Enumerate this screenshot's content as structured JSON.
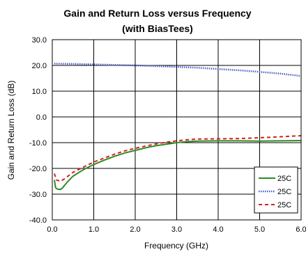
{
  "chart_data": {
    "type": "line",
    "title": "Gain and Return Loss versus Frequency",
    "subtitle": "(with BiasTees)",
    "xlabel": "Frequency (GHz)",
    "ylabel": "Gain and Return Loss (dB)",
    "xlim": [
      0,
      6
    ],
    "ylim": [
      -40,
      30
    ],
    "x_ticks": [
      "0.0",
      "1.0",
      "2.0",
      "3.0",
      "4.0",
      "5.0",
      "6.0"
    ],
    "y_ticks": [
      "30.0",
      "20.0",
      "10.0",
      "0.0",
      "-10.0",
      "-20.0",
      "-30.0",
      "-40.0"
    ],
    "grid": true,
    "legend_position": "bottom-right",
    "series": [
      {
        "name": "25C",
        "color": "#2e8b23",
        "style": "solid",
        "x": [
          0.05,
          0.08,
          0.12,
          0.2,
          0.25,
          0.35,
          0.5,
          0.75,
          1.0,
          1.25,
          1.5,
          1.75,
          2.0,
          2.25,
          2.5,
          2.75,
          3.0,
          3.25,
          3.5,
          4.0,
          4.5,
          5.0,
          5.5,
          6.0
        ],
        "y": [
          -24.5,
          -27.5,
          -28.0,
          -28.2,
          -27.5,
          -25.5,
          -23.0,
          -20.5,
          -18.5,
          -16.8,
          -15.3,
          -14.0,
          -13.0,
          -12.0,
          -11.2,
          -10.6,
          -10.0,
          -9.6,
          -9.4,
          -9.3,
          -9.3,
          -9.4,
          -9.3,
          -9.2
        ]
      },
      {
        "name": "25C",
        "color": "#4a5fc8",
        "style": "dotted",
        "x": [
          0.05,
          0.5,
          1.0,
          1.5,
          2.0,
          2.5,
          3.0,
          3.5,
          4.0,
          4.5,
          5.0,
          5.5,
          6.0
        ],
        "y": [
          20.7,
          20.6,
          20.4,
          20.2,
          20.0,
          19.7,
          19.4,
          19.1,
          18.6,
          18.1,
          17.5,
          16.8,
          15.9
        ]
      },
      {
        "name": "25C",
        "color": "#d42020",
        "style": "dashed",
        "x": [
          0.05,
          0.1,
          0.2,
          0.3,
          0.5,
          0.75,
          1.0,
          1.25,
          1.5,
          1.75,
          2.0,
          2.25,
          2.5,
          2.75,
          3.0,
          3.25,
          3.5,
          4.0,
          4.5,
          5.0,
          5.5,
          6.0
        ],
        "y": [
          -22.0,
          -24.5,
          -25.0,
          -24.0,
          -21.5,
          -19.5,
          -17.5,
          -16.0,
          -14.5,
          -13.2,
          -12.2,
          -11.3,
          -10.5,
          -9.8,
          -9.3,
          -8.9,
          -8.6,
          -8.5,
          -8.4,
          -8.1,
          -7.7,
          -7.3
        ]
      }
    ]
  }
}
